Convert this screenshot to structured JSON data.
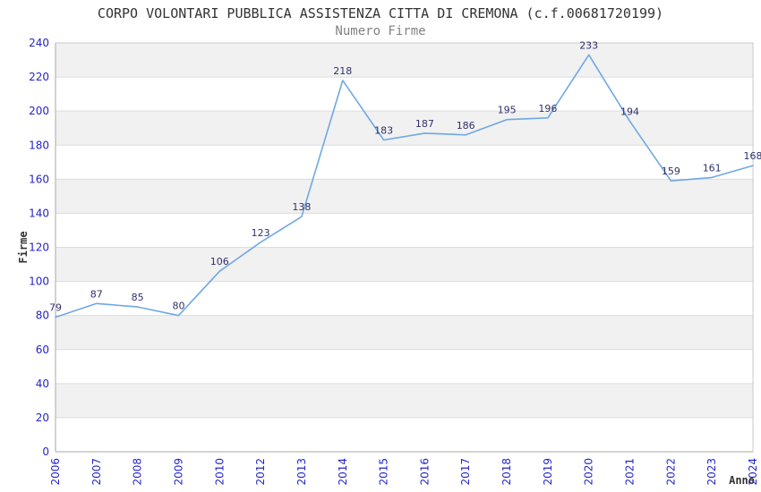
{
  "header": {
    "title": "CORPO VOLONTARI PUBBLICA ASSISTENZA CITTA DI CREMONA (c.f.00681720199)",
    "subtitle": "Numero Firme"
  },
  "chart_data": {
    "type": "line",
    "title": "CORPO VOLONTARI PUBBLICA ASSISTENZA CITTA DI CREMONA (c.f.00681720199)",
    "subtitle": "Numero Firme",
    "xlabel": "Anno",
    "ylabel": "Firme",
    "categories": [
      "2006",
      "2007",
      "2008",
      "2009",
      "2010",
      "2012",
      "2013",
      "2014",
      "2015",
      "2016",
      "2017",
      "2018",
      "2019",
      "2020",
      "2021",
      "2022",
      "2023",
      "2024"
    ],
    "series": [
      {
        "name": "Numero Firme",
        "values": [
          79,
          87,
          85,
          80,
          106,
          123,
          138,
          218,
          183,
          187,
          186,
          195,
          196,
          233,
          194,
          159,
          161,
          168
        ]
      }
    ],
    "ylim": [
      0,
      240
    ],
    "ytick_step": 20,
    "yticks": [
      0,
      20,
      40,
      60,
      80,
      100,
      120,
      140,
      160,
      180,
      200,
      220,
      240
    ],
    "grid": true,
    "legend": "none",
    "data_labels": true,
    "band_pattern": "alternating 20-unit horizontal bands, gray band at top (220-240)",
    "colors": {
      "line": "#6fa8e3",
      "data_label": "#30306e",
      "tick_label": "#2424cc",
      "title": "#333333",
      "subtitle": "#828282",
      "axis_title": "#333333",
      "band": "#f1f1f1",
      "band_alt": "#ffffff",
      "grid": "#dcdcdc",
      "border": "#c9c9c9",
      "axis_line": "#aaaaaa",
      "background": "#ffffff"
    }
  }
}
